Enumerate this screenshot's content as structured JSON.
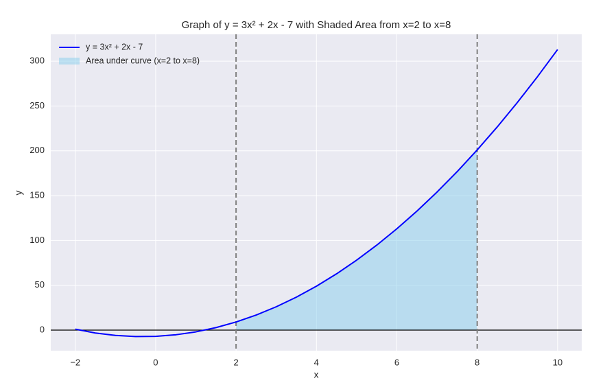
{
  "chart_data": {
    "type": "line",
    "title": "Graph of y = 3x² + 2x - 7 with Shaded Area from x=2 to x=8",
    "x_label": "x",
    "y_label": "y",
    "x": [
      -2,
      -1.5,
      -1,
      -0.5,
      0,
      0.5,
      1,
      1.5,
      2,
      2.5,
      3,
      3.5,
      4,
      4.5,
      5,
      5.5,
      6,
      6.5,
      7,
      7.5,
      8,
      8.5,
      9,
      9.5,
      10
    ],
    "series": [
      {
        "name": "y = 3x² + 2x - 7",
        "color": "#0000ff",
        "values": [
          1,
          -3.25,
          -6,
          -7.25,
          -7,
          -5.25,
          -2,
          2.75,
          9,
          16.75,
          26,
          36.75,
          49,
          62.75,
          78,
          94.75,
          113,
          132.75,
          154,
          176.75,
          201,
          226.75,
          254,
          282.75,
          313
        ]
      }
    ],
    "area": {
      "name": "Area under curve (x=2 to x=8)",
      "color": "#87ceeb",
      "from": 2,
      "to": 8
    },
    "vlines": [
      2,
      8
    ],
    "hline": 0,
    "xlim": [
      -2.61,
      10.6
    ],
    "ylim": [
      -23,
      330
    ],
    "xticks": [
      {
        "value": -2,
        "label": "−2"
      },
      0,
      2,
      4,
      6,
      8,
      10
    ],
    "yticks": [
      0,
      50,
      100,
      150,
      200,
      250,
      300
    ],
    "grid": true,
    "legend": "upper left"
  }
}
